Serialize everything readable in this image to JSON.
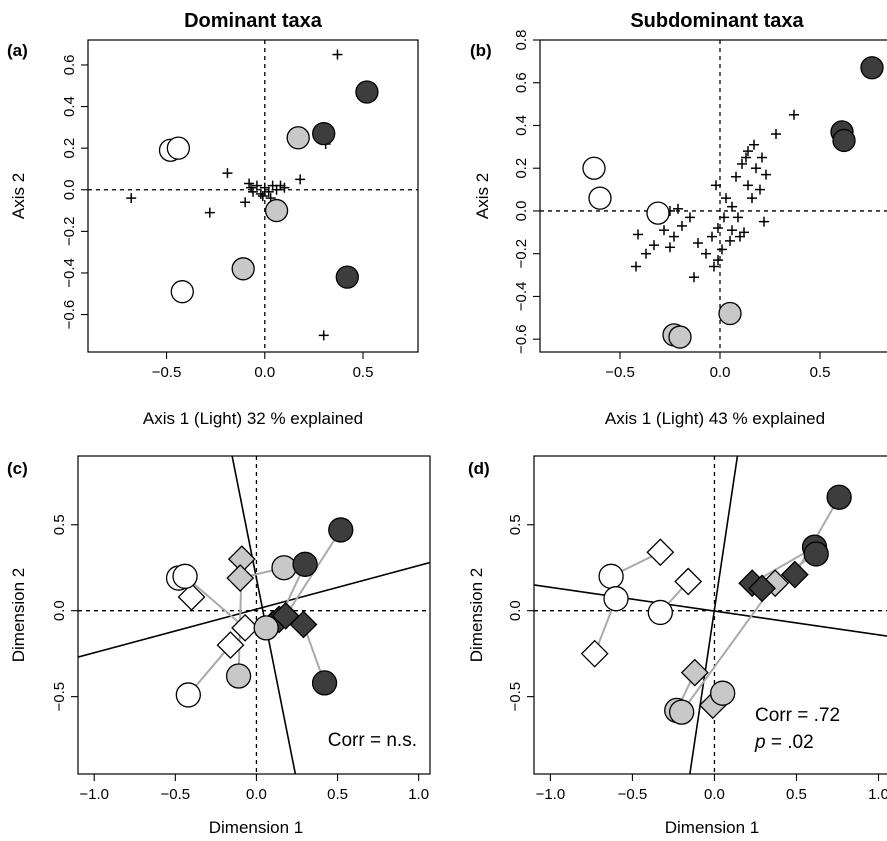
{
  "colors": {
    "light": "#ffffff",
    "medium": "#c8c8c8",
    "dark": "#3d3d3d",
    "link": "#aaaaaa"
  },
  "chart_data": [
    {
      "id": "a",
      "type": "scatter",
      "panel_label": "(a)",
      "title": "Dominant taxa",
      "xlabel": "Axis 1 (Light) 32 % explained",
      "ylabel": "Axis 2",
      "xlim": [
        -0.9,
        0.78
      ],
      "ylim": [
        -0.78,
        0.72
      ],
      "xticks": [
        -0.5,
        0.0,
        0.5
      ],
      "xtick_labels": [
        "−0.5",
        "0.0",
        "0.5"
      ],
      "yticks": [
        -0.6,
        -0.4,
        -0.2,
        0.0,
        0.2,
        0.4,
        0.6
      ],
      "ytick_labels": [
        "−0.6",
        "−0.4",
        "−0.2",
        "0.0",
        "0.2",
        "0.4",
        "0.6"
      ],
      "sites": [
        {
          "x": -0.48,
          "y": 0.19,
          "group": "light"
        },
        {
          "x": -0.44,
          "y": 0.2,
          "group": "light"
        },
        {
          "x": -0.42,
          "y": -0.49,
          "group": "light"
        },
        {
          "x": 0.06,
          "y": -0.1,
          "group": "medium"
        },
        {
          "x": -0.11,
          "y": -0.38,
          "group": "medium"
        },
        {
          "x": 0.17,
          "y": 0.25,
          "group": "medium"
        },
        {
          "x": 0.3,
          "y": 0.27,
          "group": "dark"
        },
        {
          "x": 0.52,
          "y": 0.47,
          "group": "dark"
        },
        {
          "x": 0.42,
          "y": -0.42,
          "group": "dark"
        }
      ],
      "species": [
        [
          0.37,
          0.65
        ],
        [
          0.31,
          0.22
        ],
        [
          0.3,
          -0.7
        ],
        [
          -0.68,
          -0.04
        ],
        [
          -0.28,
          -0.11
        ],
        [
          -0.19,
          0.08
        ],
        [
          -0.1,
          -0.06
        ],
        [
          0.18,
          0.05
        ],
        [
          -0.08,
          0.03
        ],
        [
          -0.06,
          -0.01
        ],
        [
          -0.04,
          0.02
        ],
        [
          -0.02,
          -0.02
        ],
        [
          0.0,
          0.01
        ],
        [
          0.02,
          -0.01
        ],
        [
          0.04,
          0.02
        ],
        [
          0.06,
          0.0
        ],
        [
          -0.01,
          -0.03
        ],
        [
          0.08,
          0.02
        ],
        [
          -0.07,
          0.01
        ],
        [
          0.03,
          -0.04
        ],
        [
          0.1,
          0.01
        ]
      ],
      "zero_lines": true
    },
    {
      "id": "b",
      "type": "scatter",
      "panel_label": "(b)",
      "title": "Subdominant taxa",
      "xlabel": "Axis 1 (Light) 43 % explained",
      "ylabel": "Axis 2",
      "xlim": [
        -0.9,
        0.85
      ],
      "ylim": [
        -0.66,
        0.8
      ],
      "xticks": [
        -0.5,
        0.0,
        0.5
      ],
      "xtick_labels": [
        "−0.5",
        "0.0",
        "0.5"
      ],
      "yticks": [
        -0.6,
        -0.4,
        -0.2,
        0.0,
        0.2,
        0.4,
        0.6,
        0.8
      ],
      "ytick_labels": [
        "−0.6",
        "−0.4",
        "−0.2",
        "0.0",
        "0.2",
        "0.4",
        "0.6",
        "0.8"
      ],
      "sites": [
        {
          "x": -0.63,
          "y": 0.2,
          "group": "light"
        },
        {
          "x": -0.6,
          "y": 0.06,
          "group": "light"
        },
        {
          "x": -0.31,
          "y": -0.01,
          "group": "light"
        },
        {
          "x": 0.05,
          "y": -0.48,
          "group": "medium"
        },
        {
          "x": -0.23,
          "y": -0.58,
          "group": "medium"
        },
        {
          "x": -0.2,
          "y": -0.59,
          "group": "medium"
        },
        {
          "x": 0.61,
          "y": 0.37,
          "group": "dark"
        },
        {
          "x": 0.62,
          "y": 0.33,
          "group": "dark"
        },
        {
          "x": 0.76,
          "y": 0.67,
          "group": "dark"
        }
      ],
      "species": [
        [
          0.37,
          0.45
        ],
        [
          0.28,
          0.36
        ],
        [
          0.17,
          0.31
        ],
        [
          0.14,
          0.28
        ],
        [
          0.18,
          0.2
        ],
        [
          0.21,
          0.25
        ],
        [
          0.23,
          0.17
        ],
        [
          0.11,
          0.22
        ],
        [
          0.14,
          0.12
        ],
        [
          0.2,
          0.1
        ],
        [
          0.16,
          0.06
        ],
        [
          0.22,
          -0.05
        ],
        [
          0.06,
          0.02
        ],
        [
          0.03,
          0.06
        ],
        [
          -0.02,
          0.12
        ],
        [
          0.02,
          -0.03
        ],
        [
          -0.01,
          -0.08
        ],
        [
          0.06,
          -0.09
        ],
        [
          0.09,
          -0.03
        ],
        [
          0.12,
          -0.1
        ],
        [
          -0.04,
          -0.12
        ],
        [
          0.01,
          -0.18
        ],
        [
          -0.03,
          -0.26
        ],
        [
          -0.07,
          -0.2
        ],
        [
          -0.11,
          -0.15
        ],
        [
          -0.15,
          -0.03
        ],
        [
          -0.19,
          -0.07
        ],
        [
          -0.21,
          0.01
        ],
        [
          -0.23,
          -0.12
        ],
        [
          -0.25,
          -0.17
        ],
        [
          -0.28,
          -0.09
        ],
        [
          -0.33,
          -0.16
        ],
        [
          -0.37,
          -0.2
        ],
        [
          -0.41,
          -0.11
        ],
        [
          -0.42,
          -0.26
        ],
        [
          -0.25,
          0.0
        ],
        [
          0.1,
          -0.12
        ],
        [
          0.05,
          -0.14
        ],
        [
          -0.01,
          -0.23
        ],
        [
          -0.13,
          -0.31
        ],
        [
          0.08,
          0.16
        ],
        [
          0.13,
          0.25
        ]
      ],
      "zero_lines": true
    },
    {
      "id": "c",
      "type": "scatter",
      "panel_label": "(c)",
      "xlabel": "Dimension 1",
      "ylabel": "Dimension 2",
      "xlim": [
        -1.1,
        1.07
      ],
      "ylim": [
        -0.95,
        0.9
      ],
      "xticks": [
        -1.0,
        -0.5,
        0.0,
        0.5,
        1.0
      ],
      "xtick_labels": [
        "−1.0",
        "−0.5",
        "0.0",
        "0.5",
        "1.0"
      ],
      "yticks": [
        -0.5,
        0.0,
        0.5
      ],
      "ytick_labels": [
        "−0.5",
        "0.0",
        "0.5"
      ],
      "annotation": "Corr = n.s.",
      "rotation_lines": [
        [
          [
            -1.1,
            -0.27
          ],
          [
            1.07,
            0.28
          ]
        ],
        [
          [
            -0.15,
            0.9
          ],
          [
            0.24,
            -0.95
          ]
        ]
      ],
      "sites": [
        {
          "x": -0.48,
          "y": 0.19,
          "group": "light"
        },
        {
          "x": -0.44,
          "y": 0.2,
          "group": "light"
        },
        {
          "x": -0.42,
          "y": -0.49,
          "group": "light"
        },
        {
          "x": 0.06,
          "y": -0.1,
          "group": "medium"
        },
        {
          "x": -0.11,
          "y": -0.38,
          "group": "medium"
        },
        {
          "x": 0.17,
          "y": 0.25,
          "group": "medium"
        },
        {
          "x": 0.3,
          "y": 0.27,
          "group": "dark"
        },
        {
          "x": 0.52,
          "y": 0.47,
          "group": "dark"
        },
        {
          "x": 0.42,
          "y": -0.42,
          "group": "dark"
        }
      ],
      "diamonds": [
        {
          "x": -0.4,
          "y": 0.08,
          "group": "light"
        },
        {
          "x": -0.16,
          "y": -0.2,
          "group": "light"
        },
        {
          "x": -0.07,
          "y": -0.1,
          "group": "light"
        },
        {
          "x": -0.09,
          "y": 0.3,
          "group": "medium"
        },
        {
          "x": -0.1,
          "y": 0.19,
          "group": "medium"
        },
        {
          "x": 0.1,
          "y": -0.08,
          "group": "medium"
        },
        {
          "x": 0.14,
          "y": -0.05,
          "group": "dark"
        },
        {
          "x": 0.18,
          "y": -0.03,
          "group": "dark"
        },
        {
          "x": 0.29,
          "y": -0.08,
          "group": "dark"
        }
      ],
      "links": [
        [
          0,
          0
        ],
        [
          2,
          1
        ],
        [
          1,
          2
        ],
        [
          4,
          3
        ],
        [
          3,
          5
        ],
        [
          5,
          4
        ],
        [
          6,
          6
        ],
        [
          7,
          7
        ],
        [
          8,
          8
        ]
      ],
      "zero_lines": true
    },
    {
      "id": "d",
      "type": "scatter",
      "panel_label": "(d)",
      "xlabel": "Dimension 1",
      "ylabel": "Dimension 2",
      "xlim": [
        -1.1,
        1.07
      ],
      "ylim": [
        -0.95,
        0.9
      ],
      "xticks": [
        -1.0,
        -0.5,
        0.0,
        0.5,
        1.0
      ],
      "xtick_labels": [
        "−1.0",
        "−0.5",
        "0.0",
        "0.5",
        "1.0"
      ],
      "yticks": [
        -0.5,
        0.0,
        0.5
      ],
      "ytick_labels": [
        "−0.5",
        "0.0",
        "0.5"
      ],
      "annotation_lines": [
        "Corr = .72",
        "p = .02"
      ],
      "rotation_lines": [
        [
          [
            -1.1,
            0.15
          ],
          [
            1.07,
            -0.15
          ]
        ],
        [
          [
            -0.15,
            -0.95
          ],
          [
            0.14,
            0.9
          ]
        ]
      ],
      "sites": [
        {
          "x": -0.63,
          "y": 0.2,
          "group": "light"
        },
        {
          "x": -0.6,
          "y": 0.07,
          "group": "light"
        },
        {
          "x": -0.33,
          "y": -0.01,
          "group": "light"
        },
        {
          "x": 0.05,
          "y": -0.48,
          "group": "medium"
        },
        {
          "x": -0.23,
          "y": -0.58,
          "group": "medium"
        },
        {
          "x": -0.2,
          "y": -0.59,
          "group": "medium"
        },
        {
          "x": 0.61,
          "y": 0.37,
          "group": "dark"
        },
        {
          "x": 0.62,
          "y": 0.33,
          "group": "dark"
        },
        {
          "x": 0.76,
          "y": 0.66,
          "group": "dark"
        }
      ],
      "diamonds": [
        {
          "x": -0.73,
          "y": -0.25,
          "group": "light"
        },
        {
          "x": -0.33,
          "y": 0.34,
          "group": "light"
        },
        {
          "x": -0.16,
          "y": 0.17,
          "group": "light"
        },
        {
          "x": -0.01,
          "y": -0.55,
          "group": "medium"
        },
        {
          "x": -0.12,
          "y": -0.36,
          "group": "medium"
        },
        {
          "x": 0.37,
          "y": 0.16,
          "group": "medium"
        },
        {
          "x": 0.23,
          "y": 0.16,
          "group": "dark"
        },
        {
          "x": 0.29,
          "y": 0.13,
          "group": "dark"
        },
        {
          "x": 0.49,
          "y": 0.21,
          "group": "dark"
        }
      ],
      "links": [
        [
          0,
          1
        ],
        [
          1,
          0
        ],
        [
          2,
          2
        ],
        [
          3,
          3
        ],
        [
          4,
          4
        ],
        [
          5,
          5
        ],
        [
          6,
          6
        ],
        [
          7,
          7
        ],
        [
          8,
          8
        ]
      ],
      "zero_lines": true
    }
  ]
}
